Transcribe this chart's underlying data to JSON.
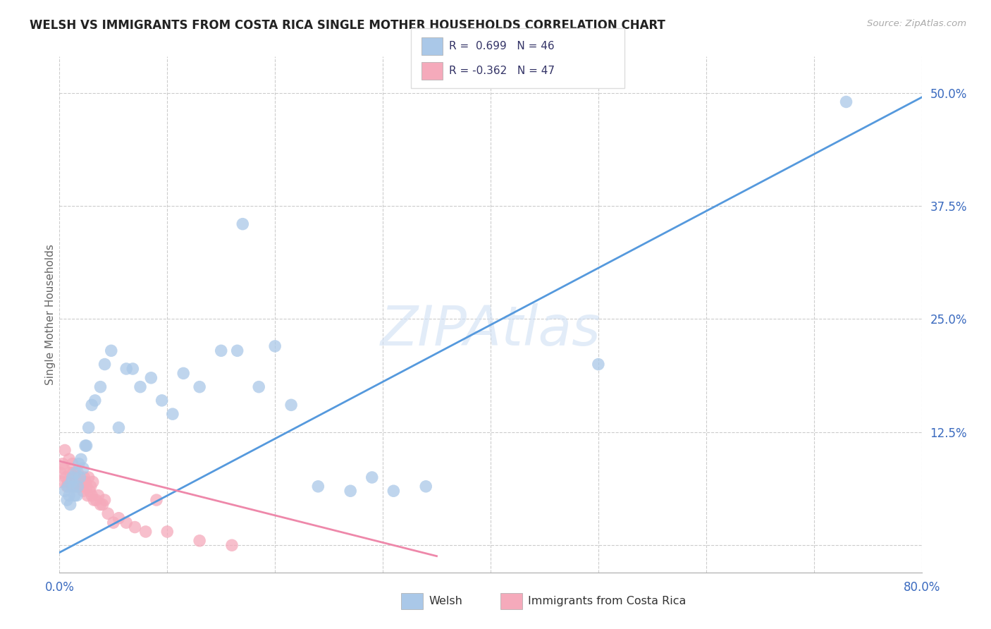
{
  "title": "WELSH VS IMMIGRANTS FROM COSTA RICA SINGLE MOTHER HOUSEHOLDS CORRELATION CHART",
  "source": "Source: ZipAtlas.com",
  "ylabel": "Single Mother Households",
  "xlim": [
    0.0,
    0.8
  ],
  "ylim": [
    -0.03,
    0.54
  ],
  "xticks": [
    0.0,
    0.1,
    0.2,
    0.3,
    0.4,
    0.5,
    0.6,
    0.7,
    0.8
  ],
  "xticklabels": [
    "0.0%",
    "",
    "",
    "",
    "",
    "",
    "",
    "",
    "80.0%"
  ],
  "ytick_positions": [
    0.0,
    0.125,
    0.25,
    0.375,
    0.5
  ],
  "ytick_labels": [
    "",
    "12.5%",
    "25.0%",
    "37.5%",
    "50.0%"
  ],
  "welsh_R": 0.699,
  "welsh_N": 46,
  "immigrant_R": -0.362,
  "immigrant_N": 47,
  "welsh_color": "#aac8e8",
  "immigrant_color": "#f5aabb",
  "welsh_line_color": "#5599dd",
  "immigrant_line_color": "#ee88aa",
  "watermark": "ZIPAtlas",
  "background_color": "#ffffff",
  "grid_color": "#cccccc",
  "welsh_line_x0": 0.0,
  "welsh_line_y0": -0.008,
  "welsh_line_x1": 0.8,
  "welsh_line_y1": 0.495,
  "immigrant_line_x0": 0.0,
  "immigrant_line_y0": 0.093,
  "immigrant_line_x1": 0.35,
  "immigrant_line_y1": -0.012,
  "welsh_x": [
    0.005,
    0.007,
    0.008,
    0.009,
    0.01,
    0.011,
    0.012,
    0.013,
    0.014,
    0.015,
    0.016,
    0.017,
    0.018,
    0.019,
    0.02,
    0.022,
    0.024,
    0.025,
    0.027,
    0.03,
    0.033,
    0.038,
    0.042,
    0.048,
    0.055,
    0.062,
    0.068,
    0.075,
    0.085,
    0.095,
    0.105,
    0.115,
    0.13,
    0.15,
    0.165,
    0.185,
    0.2,
    0.215,
    0.24,
    0.27,
    0.29,
    0.31,
    0.34,
    0.17,
    0.5,
    0.73
  ],
  "welsh_y": [
    0.06,
    0.05,
    0.065,
    0.055,
    0.045,
    0.07,
    0.075,
    0.065,
    0.055,
    0.08,
    0.055,
    0.065,
    0.09,
    0.075,
    0.095,
    0.085,
    0.11,
    0.11,
    0.13,
    0.155,
    0.16,
    0.175,
    0.2,
    0.215,
    0.13,
    0.195,
    0.195,
    0.175,
    0.185,
    0.16,
    0.145,
    0.19,
    0.175,
    0.215,
    0.215,
    0.175,
    0.22,
    0.155,
    0.065,
    0.06,
    0.075,
    0.06,
    0.065,
    0.355,
    0.2,
    0.49
  ],
  "immigrant_x": [
    0.001,
    0.002,
    0.003,
    0.004,
    0.005,
    0.006,
    0.007,
    0.008,
    0.009,
    0.01,
    0.011,
    0.012,
    0.013,
    0.014,
    0.015,
    0.016,
    0.017,
    0.018,
    0.019,
    0.02,
    0.021,
    0.022,
    0.023,
    0.024,
    0.025,
    0.026,
    0.027,
    0.028,
    0.029,
    0.03,
    0.031,
    0.032,
    0.034,
    0.036,
    0.038,
    0.04,
    0.042,
    0.045,
    0.05,
    0.055,
    0.062,
    0.07,
    0.08,
    0.09,
    0.1,
    0.13,
    0.16
  ],
  "immigrant_y": [
    0.08,
    0.07,
    0.09,
    0.085,
    0.105,
    0.075,
    0.065,
    0.07,
    0.095,
    0.08,
    0.065,
    0.09,
    0.08,
    0.065,
    0.075,
    0.065,
    0.08,
    0.075,
    0.065,
    0.07,
    0.065,
    0.06,
    0.075,
    0.07,
    0.065,
    0.055,
    0.075,
    0.06,
    0.065,
    0.055,
    0.07,
    0.05,
    0.05,
    0.055,
    0.045,
    0.045,
    0.05,
    0.035,
    0.025,
    0.03,
    0.025,
    0.02,
    0.015,
    0.05,
    0.015,
    0.005,
    0.0
  ]
}
